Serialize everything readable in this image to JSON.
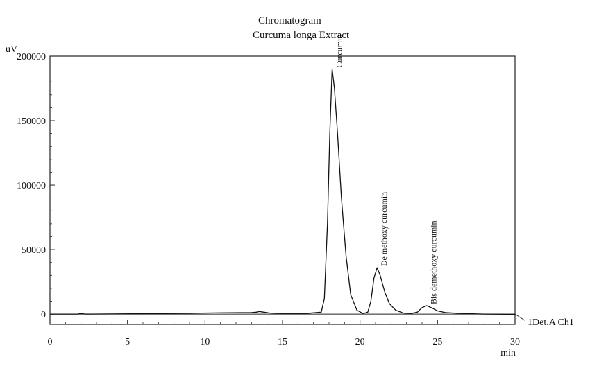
{
  "chart_data": {
    "type": "line",
    "title": "Chromatogram",
    "subtitle": "Curcuma longa Extract",
    "xlabel": "min",
    "ylabel": "uV",
    "xlim": [
      0,
      30
    ],
    "ylim": [
      -8000,
      200000
    ],
    "x_ticks": [
      0,
      5,
      10,
      15,
      20,
      25,
      30
    ],
    "y_ticks": [
      0,
      50000,
      100000,
      150000,
      200000
    ],
    "grid": false,
    "series": [
      {
        "name": "1Det.A Ch1",
        "x": [
          0,
          1.8,
          2.0,
          2.3,
          8.0,
          11.0,
          13.0,
          13.3,
          13.5,
          13.8,
          14.2,
          15.0,
          16.5,
          17.5,
          17.7,
          17.9,
          18.05,
          18.2,
          18.35,
          18.55,
          18.8,
          19.1,
          19.4,
          19.8,
          20.2,
          20.5,
          20.7,
          20.9,
          21.1,
          21.3,
          21.6,
          21.9,
          22.3,
          22.8,
          23.3,
          23.7,
          24.0,
          24.3,
          24.6,
          25.0,
          25.5,
          26.5,
          28.0,
          30.0
        ],
        "y": [
          0,
          0,
          500,
          0,
          500,
          1000,
          1200,
          1500,
          2000,
          1500,
          800,
          500,
          500,
          1500,
          12000,
          70000,
          140000,
          190000,
          175000,
          140000,
          90000,
          45000,
          15000,
          3000,
          500,
          1500,
          10000,
          28000,
          36000,
          30000,
          17000,
          8000,
          3000,
          800,
          500,
          1500,
          5000,
          6500,
          5000,
          2500,
          1200,
          500,
          0,
          -200
        ]
      }
    ],
    "annotations": [
      {
        "text": "Curcumin",
        "x": 18.2,
        "y": 190000
      },
      {
        "text": "De methoxy curcumin",
        "x": 21.1,
        "y": 36000
      },
      {
        "text": "Bis demethoxy curcumin",
        "x": 24.3,
        "y": 6500
      }
    ],
    "trace_label": "1Det.A Ch1"
  }
}
